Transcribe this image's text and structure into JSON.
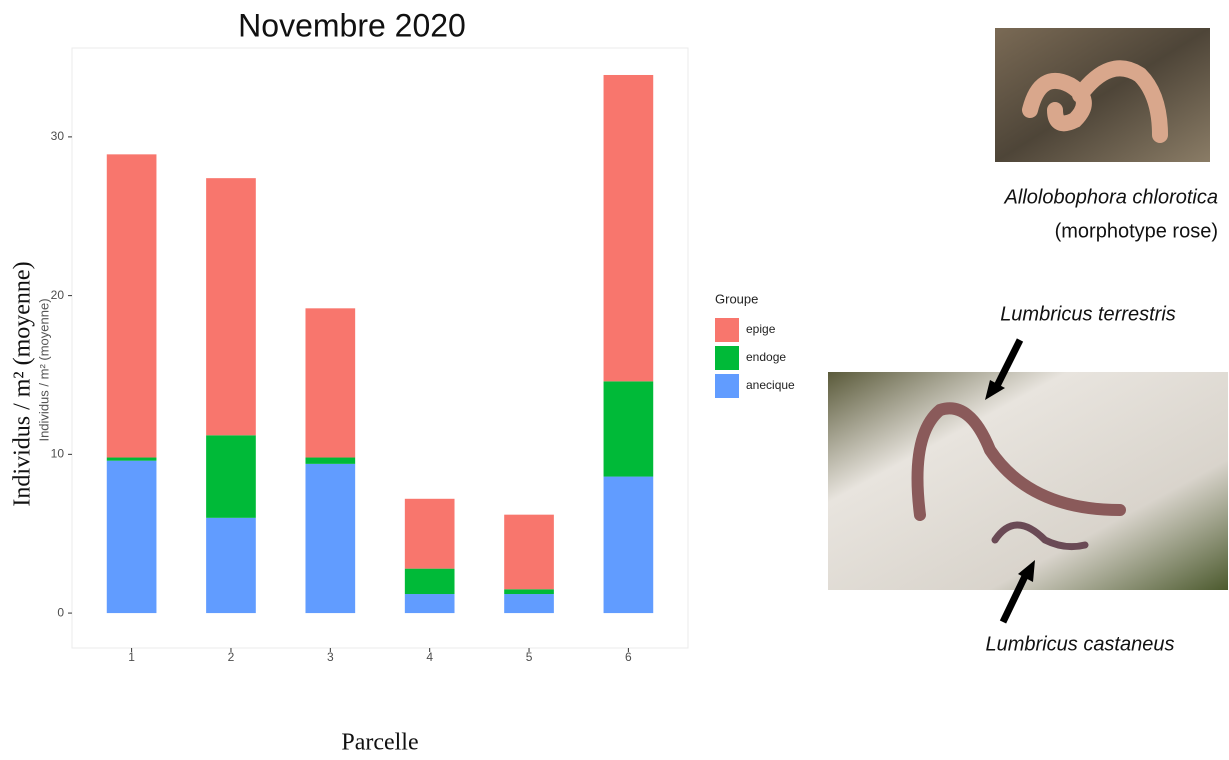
{
  "chart_data": {
    "type": "stacked_bar",
    "title": "Novembre 2020",
    "x_label": "Parcelle",
    "y_label": "Individus / m² (moyenne)",
    "y_label_small": "Individus / m² (moyenne)",
    "categories": [
      "1",
      "2",
      "3",
      "4",
      "5",
      "6"
    ],
    "legend_title": "Groupe",
    "series": [
      {
        "name": "anecique",
        "color": "#619CFF",
        "values": [
          9.6,
          6.0,
          9.4,
          1.2,
          1.2,
          8.6
        ]
      },
      {
        "name": "endoge",
        "color": "#00BA38",
        "values": [
          0.2,
          5.2,
          0.4,
          1.6,
          0.3,
          6.0
        ]
      },
      {
        "name": "epige",
        "color": "#F8766D",
        "values": [
          19.1,
          16.2,
          9.4,
          4.4,
          4.7,
          19.3
        ]
      }
    ],
    "ylim": [
      -2.2,
      35.6
    ],
    "yticks": [
      0,
      10,
      20,
      30
    ],
    "grid": false,
    "legend": "right"
  },
  "annotations": {
    "photo1_species": "Allolobophora chlorotica",
    "photo1_note": "(morphotype rose)",
    "photo2_upper": "Lumbricus terrestris",
    "photo2_lower": "Lumbricus castaneus"
  }
}
